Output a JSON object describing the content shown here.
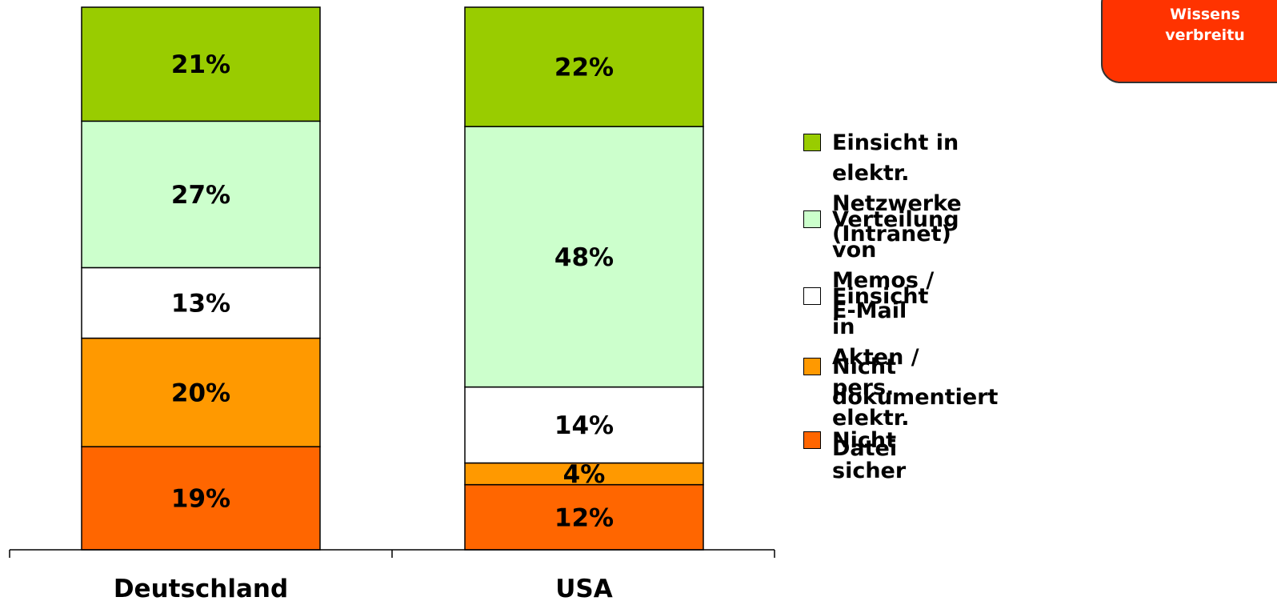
{
  "badge": {
    "line1": "Wissens",
    "line2": "verbreitu"
  },
  "chart_data": {
    "type": "bar",
    "stacked": true,
    "categories": [
      "Deutschland",
      "USA"
    ],
    "ylim": [
      0,
      100
    ],
    "series": [
      {
        "name": "Nicht sicher",
        "color": "#ff6600",
        "values": [
          19,
          12
        ]
      },
      {
        "name": "Nicht dokumentiert",
        "color": "#ff9900",
        "values": [
          20,
          4
        ]
      },
      {
        "name": "Einsicht in Akten / pers. elektr. Datei",
        "color": "#ffffff",
        "values": [
          13,
          14
        ]
      },
      {
        "name": "Verteilung von Memos / E-Mail",
        "color": "#ccffcc",
        "values": [
          27,
          48
        ]
      },
      {
        "name": "Einsicht in elektr. Netzwerke (Intranet)",
        "color": "#99cc00",
        "values": [
          21,
          22
        ]
      }
    ],
    "value_labels": [
      [
        "19%",
        "20%",
        "13%",
        "27%",
        "21%"
      ],
      [
        "12%",
        "4%",
        "14%",
        "48%",
        "22%"
      ]
    ],
    "legend_position": "right",
    "grid": false
  },
  "legend": [
    {
      "label": "Einsicht in elektr. Netzwerke\n(Intranet)",
      "color": "#99cc00"
    },
    {
      "label": "Verteilung von Memos /\nE-Mail",
      "color": "#ccffcc"
    },
    {
      "label": "Einsicht in Akten /\npers. elektr. Datei",
      "color": "#ffffff"
    },
    {
      "label": "Nicht dokumentiert",
      "color": "#ff9900"
    },
    {
      "label": "Nicht sicher",
      "color": "#ff6600"
    }
  ]
}
